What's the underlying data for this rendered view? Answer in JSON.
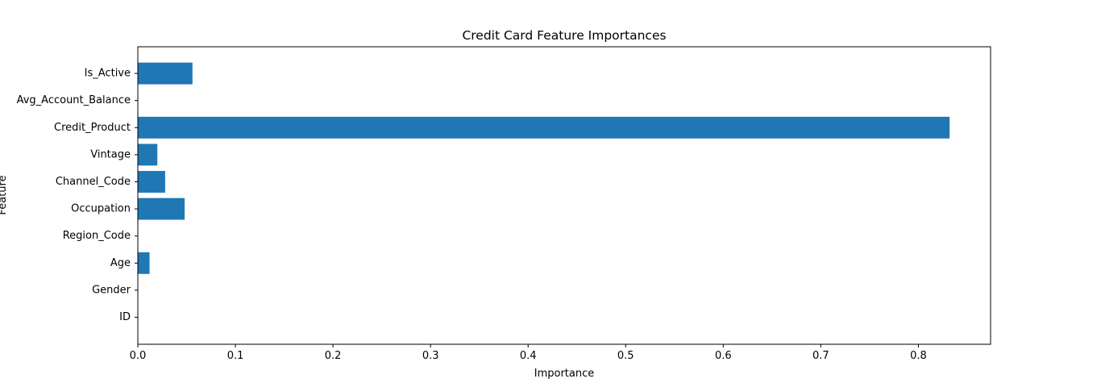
{
  "chart_data": {
    "type": "bar",
    "orientation": "horizontal",
    "title": "Credit Card Feature Importances",
    "xlabel": "Importance",
    "ylabel": "Feature",
    "categories": [
      "ID",
      "Gender",
      "Age",
      "Region_Code",
      "Occupation",
      "Channel_Code",
      "Vintage",
      "Credit_Product",
      "Avg_Account_Balance",
      "Is_Active"
    ],
    "values": [
      0.0,
      0.0,
      0.012,
      0.0,
      0.048,
      0.028,
      0.02,
      0.832,
      0.0,
      0.056
    ],
    "xlim": [
      0,
      0.874
    ],
    "xticks": [
      0.0,
      0.1,
      0.2,
      0.3,
      0.4,
      0.5,
      0.6,
      0.7,
      0.8
    ],
    "xtick_labels": [
      "0.0",
      "0.1",
      "0.2",
      "0.3",
      "0.4",
      "0.5",
      "0.6",
      "0.7",
      "0.8"
    ],
    "grid": false,
    "legend": "none",
    "bar_color": "#1f77b4"
  }
}
